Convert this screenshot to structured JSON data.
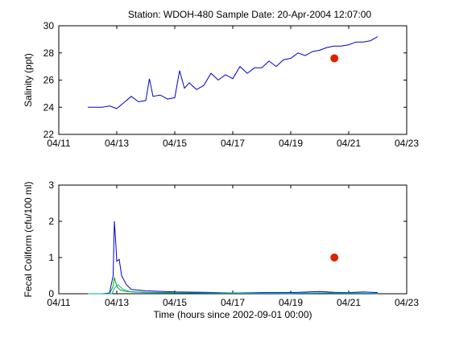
{
  "figure": {
    "title": "Station: WDOH-480  Sample Date: 20-Apr-2004 12:07:00"
  },
  "chart_data": [
    {
      "type": "line",
      "title": "",
      "xlabel": "",
      "ylabel": "Salinity (ppt)",
      "xlim": [
        "2004-04-11",
        "2004-04-23"
      ],
      "ylim": [
        22,
        30
      ],
      "x_ticks": [
        "04/11",
        "04/13",
        "04/15",
        "04/17",
        "04/19",
        "04/21",
        "04/23"
      ],
      "y_ticks": [
        "22",
        "24",
        "26",
        "28",
        "30"
      ],
      "grid": false,
      "colors": {
        "series": "#0000cc",
        "sample": "#dd2200"
      },
      "series": [
        {
          "x": [
            "2004-04-12 00:00",
            "2004-04-12 12:00",
            "2004-04-12 18:00",
            "2004-04-13 00:00",
            "2004-04-13 04:00",
            "2004-04-13 12:00",
            "2004-04-13 18:00",
            "2004-04-14 00:00",
            "2004-04-14 03:00",
            "2004-04-14 06:00",
            "2004-04-14 12:00",
            "2004-04-14 18:00",
            "2004-04-15 00:00",
            "2004-04-15 04:00",
            "2004-04-15 08:00",
            "2004-04-15 12:00",
            "2004-04-15 18:00",
            "2004-04-16 00:00",
            "2004-04-16 06:00",
            "2004-04-16 12:00",
            "2004-04-16 18:00",
            "2004-04-17 00:00",
            "2004-04-17 06:00",
            "2004-04-17 12:00",
            "2004-04-17 18:00",
            "2004-04-18 00:00",
            "2004-04-18 06:00",
            "2004-04-18 12:00",
            "2004-04-18 18:00",
            "2004-04-19 00:00",
            "2004-04-19 06:00",
            "2004-04-19 12:00",
            "2004-04-19 18:00",
            "2004-04-20 00:00",
            "2004-04-20 06:00",
            "2004-04-20 12:00",
            "2004-04-20 18:00",
            "2004-04-21 00:00",
            "2004-04-21 06:00",
            "2004-04-21 12:00",
            "2004-04-21 18:00",
            "2004-04-22 00:00"
          ],
          "y": [
            24.0,
            24.0,
            24.1,
            23.9,
            24.2,
            24.8,
            24.4,
            24.5,
            26.1,
            24.8,
            24.9,
            24.6,
            24.7,
            26.7,
            25.4,
            25.8,
            25.3,
            25.6,
            26.5,
            26.0,
            26.4,
            26.1,
            27.0,
            26.5,
            26.9,
            26.9,
            27.4,
            27.0,
            27.5,
            27.6,
            28.0,
            27.8,
            28.1,
            28.2,
            28.4,
            28.5,
            28.5,
            28.6,
            28.8,
            28.8,
            28.9,
            29.2
          ]
        }
      ],
      "sample_point": {
        "x": "2004-04-20 12:07",
        "y": 27.6
      }
    },
    {
      "type": "line",
      "title": "",
      "xlabel": "Time (hours since 2002-09-01 00:00)",
      "ylabel": "Fecal Coliform (cfu/100 ml)",
      "xlim": [
        "2004-04-11",
        "2004-04-23"
      ],
      "ylim": [
        0,
        3
      ],
      "x_ticks": [
        "04/11",
        "04/13",
        "04/15",
        "04/17",
        "04/19",
        "04/21",
        "04/23"
      ],
      "y_ticks": [
        "0",
        "1",
        "2",
        "3"
      ],
      "grid": false,
      "colors": {
        "blue": "#0000cc",
        "green": "#00aa00",
        "cyan": "#00aaaa",
        "sample": "#dd2200"
      },
      "series": [
        {
          "color": "blue",
          "x": [
            "2004-04-12 00:00",
            "2004-04-12 12:00",
            "2004-04-12 18:00",
            "2004-04-12 21:00",
            "2004-04-12 22:00",
            "2004-04-12 23:00",
            "2004-04-13 00:00",
            "2004-04-13 02:00",
            "2004-04-13 04:00",
            "2004-04-13 08:00",
            "2004-04-13 12:00",
            "2004-04-14 00:00",
            "2004-04-15 00:00",
            "2004-04-16 00:00",
            "2004-04-17 00:00",
            "2004-04-18 00:00",
            "2004-04-19 00:00",
            "2004-04-20 00:00",
            "2004-04-20 12:00",
            "2004-04-21 00:00",
            "2004-04-21 12:00",
            "2004-04-22 00:00"
          ],
          "y": [
            0.0,
            0.0,
            0.02,
            0.5,
            2.0,
            1.5,
            0.9,
            0.95,
            0.5,
            0.25,
            0.12,
            0.08,
            0.05,
            0.04,
            0.02,
            0.03,
            0.03,
            0.06,
            0.04,
            0.03,
            0.05,
            0.03
          ]
        },
        {
          "color": "green",
          "x": [
            "2004-04-12 00:00",
            "2004-04-12 18:00",
            "2004-04-12 21:00",
            "2004-04-12 22:00",
            "2004-04-13 00:00",
            "2004-04-13 03:00",
            "2004-04-13 08:00",
            "2004-04-14 00:00",
            "2004-04-15 00:00",
            "2004-04-16 00:00",
            "2004-04-19 00:00",
            "2004-04-20 00:00",
            "2004-04-21 00:00",
            "2004-04-22 00:00"
          ],
          "y": [
            0.0,
            0.0,
            0.2,
            0.45,
            0.2,
            0.1,
            0.06,
            0.04,
            0.03,
            0.02,
            0.01,
            0.02,
            0.02,
            0.01
          ]
        },
        {
          "color": "cyan",
          "x": [
            "2004-04-12 00:00",
            "2004-04-12 20:00",
            "2004-04-12 22:00",
            "2004-04-13 01:00",
            "2004-04-13 05:00",
            "2004-04-13 12:00",
            "2004-04-14 00:00",
            "2004-04-16 00:00",
            "2004-04-19 00:00",
            "2004-04-20 00:00",
            "2004-04-22 00:00"
          ],
          "y": [
            0.0,
            0.0,
            0.15,
            0.25,
            0.12,
            0.05,
            0.03,
            0.02,
            0.01,
            0.02,
            0.01
          ]
        }
      ],
      "sample_point": {
        "x": "2004-04-20 12:07",
        "y": 1.0
      }
    }
  ]
}
